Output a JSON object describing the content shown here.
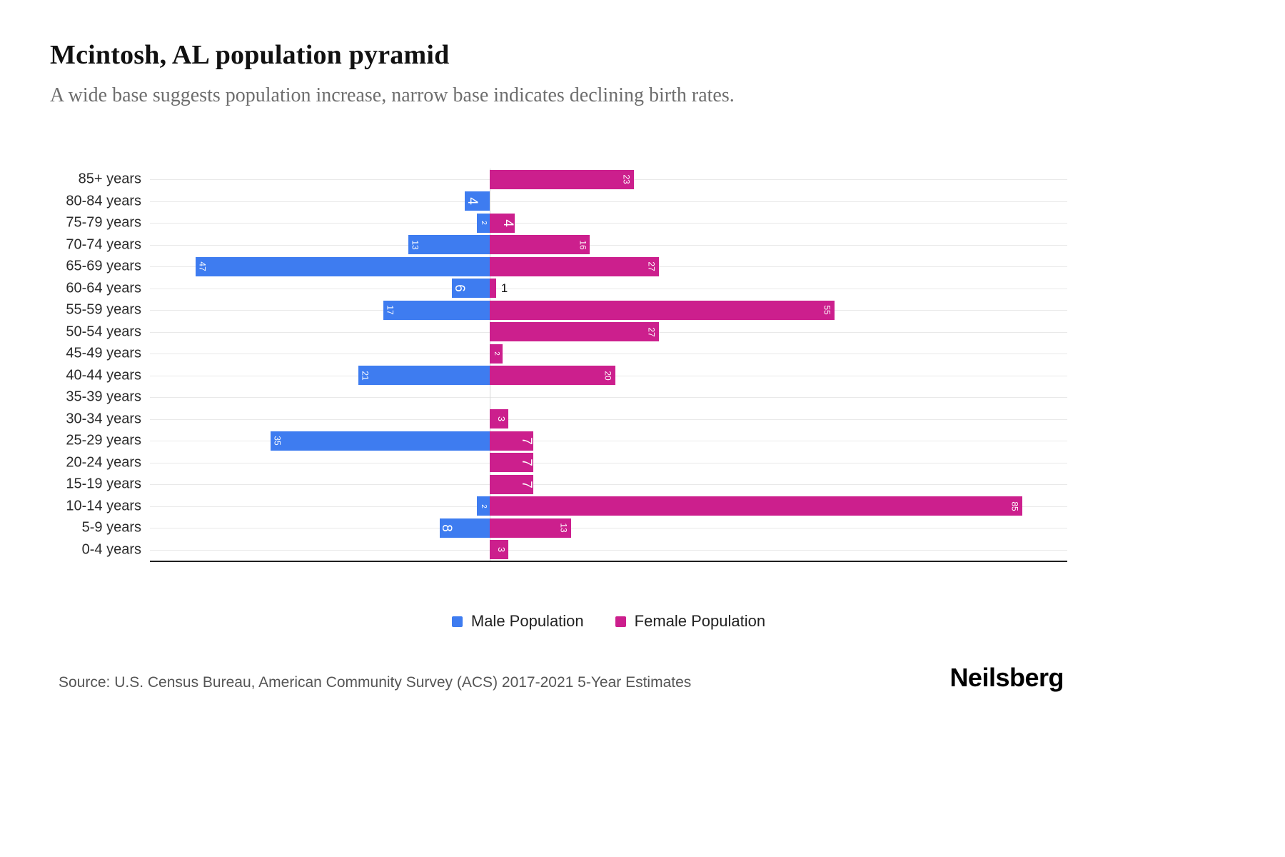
{
  "header": {
    "title": "Mcintosh, AL population pyramid",
    "subtitle": "A wide base suggests population increase, narrow base indicates declining birth rates."
  },
  "chart_data": {
    "type": "bar",
    "orientation": "horizontal population pyramid",
    "categories": [
      "85+ years",
      "80-84 years",
      "75-79 years",
      "70-74 years",
      "65-69 years",
      "60-64 years",
      "55-59 years",
      "50-54 years",
      "45-49 years",
      "40-44 years",
      "35-39 years",
      "30-34 years",
      "25-29 years",
      "20-24 years",
      "15-19 years",
      "10-14 years",
      "5-9 years",
      "0-4 years"
    ],
    "series": [
      {
        "name": "Male Population",
        "side": "left",
        "color": "#3e7cf0",
        "values": [
          0,
          4,
          2,
          13,
          47,
          6,
          17,
          0,
          0,
          21,
          0,
          0,
          35,
          0,
          0,
          2,
          8,
          0
        ]
      },
      {
        "name": "Female Population",
        "side": "right",
        "color": "#cc1f8d",
        "values": [
          23,
          0,
          4,
          16,
          27,
          1,
          55,
          27,
          2,
          20,
          0,
          3,
          7,
          7,
          7,
          85,
          13,
          3
        ]
      }
    ],
    "value_labels": "shown on bars, rotated 90deg, white inside bars; black outside when bar too small",
    "grid": "horizontal light gridlines per category, vertical center baseline",
    "legend_position": "bottom center",
    "xmax_right": 85,
    "title": "Mcintosh, AL population pyramid"
  },
  "legend": {
    "male_label": "Male Population",
    "female_label": "Female Population"
  },
  "footer": {
    "source": "Source: U.S. Census Bureau, American Community Survey (ACS) 2017-2021 5-Year Estimates",
    "logo": "Neilsberg"
  }
}
